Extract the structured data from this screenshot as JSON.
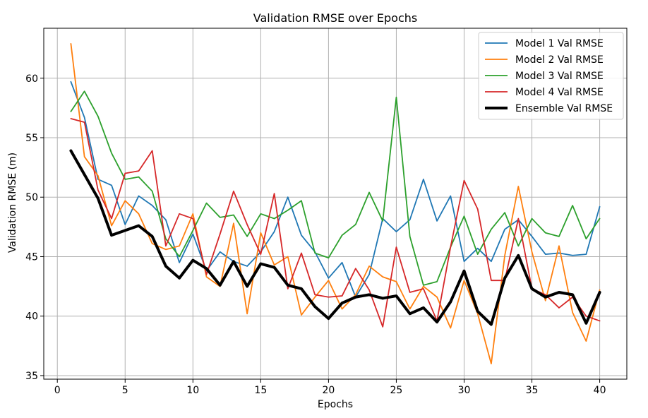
{
  "chart_data": {
    "type": "line",
    "title": "Validation RMSE over Epochs",
    "xlabel": "Epochs",
    "ylabel": "Validation RMSE (m)",
    "xlim": [
      -1,
      42
    ],
    "ylim": [
      34.7,
      64.2
    ],
    "xticks": [
      0,
      5,
      10,
      15,
      20,
      25,
      30,
      35,
      40
    ],
    "yticks": [
      35,
      40,
      45,
      50,
      55,
      60
    ],
    "grid": true,
    "legend_position": "top-right",
    "x": [
      1,
      2,
      3,
      4,
      5,
      6,
      7,
      8,
      9,
      10,
      11,
      12,
      13,
      14,
      15,
      16,
      17,
      18,
      19,
      20,
      21,
      22,
      23,
      24,
      25,
      26,
      27,
      28,
      29,
      30,
      31,
      32,
      33,
      34,
      35,
      36,
      37,
      38,
      39,
      40
    ],
    "series": [
      {
        "name": "Model 1 Val RMSE",
        "color": "#1f77b4",
        "width": 1.8,
        "values": [
          59.7,
          56.7,
          51.5,
          51.0,
          47.7,
          50.1,
          49.3,
          48.1,
          44.5,
          46.9,
          43.8,
          45.4,
          44.6,
          44.2,
          45.4,
          47.1,
          50.0,
          46.8,
          45.4,
          43.2,
          44.5,
          41.6,
          43.5,
          48.2,
          47.1,
          48.1,
          51.5,
          48.0,
          50.1,
          44.6,
          45.7,
          44.6,
          47.3,
          48.1,
          46.7,
          45.2,
          45.3,
          45.1,
          45.2,
          49.2
        ]
      },
      {
        "name": "Model 2 Val RMSE",
        "color": "#ff7f0e",
        "width": 1.8,
        "values": [
          62.9,
          53.4,
          51.8,
          47.6,
          49.7,
          48.6,
          46.1,
          45.6,
          45.9,
          48.6,
          43.3,
          42.5,
          47.8,
          40.2,
          47.0,
          44.3,
          45.0,
          40.1,
          41.6,
          43.0,
          40.6,
          41.8,
          44.2,
          43.3,
          42.9,
          40.6,
          42.5,
          41.6,
          39.0,
          43.0,
          40.2,
          36.0,
          45.1,
          50.9,
          45.4,
          41.3,
          45.9,
          40.3,
          37.9,
          42.2
        ]
      },
      {
        "name": "Model 3 Val RMSE",
        "color": "#2ca02c",
        "width": 1.8,
        "values": [
          57.2,
          58.9,
          56.8,
          53.7,
          51.5,
          51.7,
          50.5,
          46.5,
          45.0,
          47.2,
          49.5,
          48.3,
          48.5,
          46.7,
          48.6,
          48.2,
          48.9,
          49.7,
          45.3,
          44.9,
          46.8,
          47.7,
          50.4,
          48.0,
          58.4,
          46.7,
          42.6,
          42.9,
          45.8,
          48.4,
          45.2,
          47.3,
          48.7,
          45.9,
          48.2,
          47.0,
          46.7,
          49.3,
          46.5,
          48.2
        ]
      },
      {
        "name": "Model 4 Val RMSE",
        "color": "#d62728",
        "width": 1.8,
        "values": [
          56.6,
          56.3,
          50.6,
          48.2,
          52.0,
          52.2,
          53.9,
          45.9,
          48.6,
          48.2,
          43.5,
          46.9,
          50.5,
          47.7,
          45.2,
          50.3,
          42.3,
          45.3,
          41.8,
          41.6,
          41.7,
          44.0,
          42.2,
          39.1,
          45.8,
          42.0,
          42.3,
          39.6,
          45.8,
          51.4,
          49.0,
          43.0,
          43.0,
          48.2,
          42.3,
          41.8,
          40.7,
          41.6,
          40.0,
          39.6
        ]
      },
      {
        "name": "Ensemble Val RMSE",
        "color": "#000000",
        "width": 4,
        "values": [
          53.9,
          51.9,
          49.9,
          46.8,
          47.2,
          47.6,
          46.7,
          44.2,
          43.2,
          44.7,
          44.0,
          42.6,
          44.6,
          42.5,
          44.4,
          44.1,
          42.6,
          42.3,
          40.8,
          39.8,
          41.1,
          41.6,
          41.8,
          41.5,
          41.7,
          40.2,
          40.7,
          39.5,
          41.2,
          43.8,
          40.4,
          39.3,
          43.2,
          45.1,
          42.3,
          41.6,
          42.0,
          41.8,
          39.4,
          42.0
        ]
      }
    ]
  }
}
